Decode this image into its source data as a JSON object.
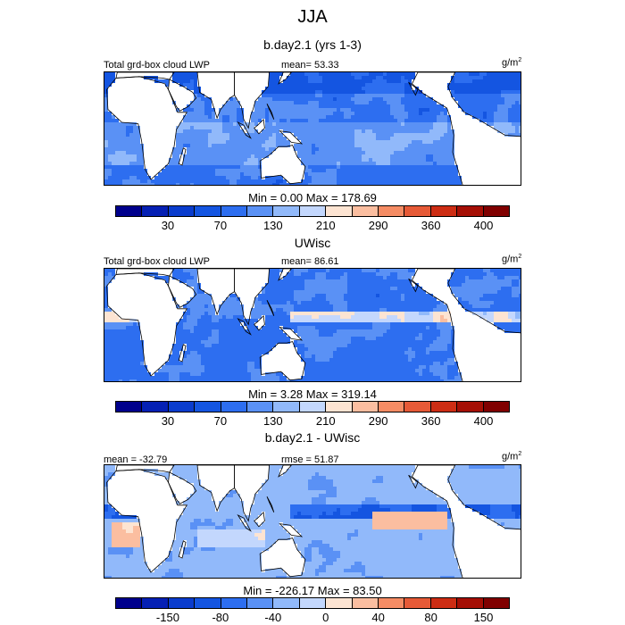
{
  "title": "JJA",
  "panels": [
    {
      "subtitle": "b.day2.1 (yrs 1-3)",
      "left_label": "Total grd-box cloud LWP",
      "center_label": "mean=  53.33",
      "units_base": "g/m",
      "units_sup": "2",
      "minmax": "Min =    0.00 Max = 178.69",
      "field": "model"
    },
    {
      "subtitle": "UWisc",
      "left_label": "Total grd-box cloud LWP",
      "center_label": "mean=  86.61",
      "units_base": "g/m",
      "units_sup": "2",
      "minmax": "Min =    3.28 Max = 319.14",
      "field": "obs"
    },
    {
      "subtitle": "b.day2.1 - UWisc",
      "left_label": "mean = -32.79",
      "center_label": "rmse =  51.87",
      "units_base": "g/m",
      "units_sup": "2",
      "minmax": "Min = -226.17 Max =  83.50",
      "field": "diff"
    }
  ],
  "colorbar": {
    "colors": [
      "#00008c",
      "#0520b4",
      "#0a3ccd",
      "#1455e1",
      "#2d6ef0",
      "#5a91f5",
      "#91b9fa",
      "#c3d7fd",
      "#fde4d2",
      "#fbbea0",
      "#f58c64",
      "#e65a37",
      "#cd2d14",
      "#a50f05",
      "#800000"
    ],
    "abs_ticks": [
      "30",
      "70",
      "130",
      "210",
      "290",
      "360",
      "400"
    ],
    "diff_ticks": [
      "-150",
      "-80",
      "-40",
      "0",
      "40",
      "80",
      "150"
    ]
  },
  "land_color": "#ffffff",
  "coast_color": "#000000"
}
